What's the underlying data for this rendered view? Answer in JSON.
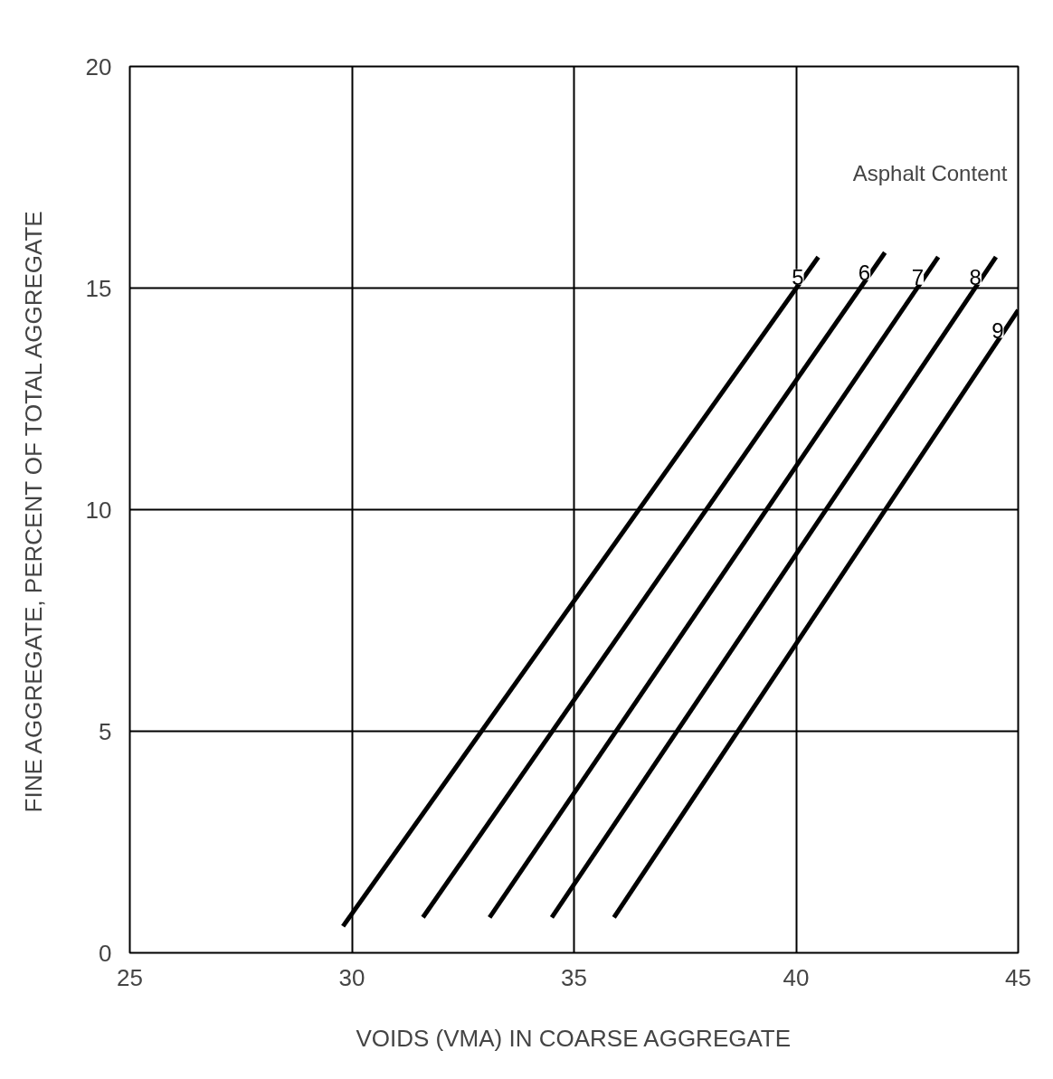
{
  "chart_data": {
    "type": "line",
    "xlabel": "VOIDS (VMA) IN COARSE AGGREGATE",
    "ylabel": "FINE AGGREGATE, PERCENT OF TOTAL AGGREGATE",
    "legend_title": "Asphalt Content",
    "xlim": [
      25,
      45
    ],
    "ylim": [
      0,
      20
    ],
    "xticks": [
      25,
      30,
      35,
      40,
      45
    ],
    "yticks": [
      0,
      5,
      10,
      15,
      20
    ],
    "grid": true,
    "marker": "none",
    "line_style": "solid",
    "series": [
      {
        "name": "5",
        "color": "#000000",
        "x": [
          29.8,
          40.5
        ],
        "values": [
          0.6,
          15.7
        ]
      },
      {
        "name": "6",
        "color": "#000000",
        "x": [
          31.6,
          42.0
        ],
        "values": [
          0.8,
          15.8
        ]
      },
      {
        "name": "7",
        "color": "#000000",
        "x": [
          33.1,
          43.2
        ],
        "values": [
          0.8,
          15.7
        ]
      },
      {
        "name": "8",
        "color": "#000000",
        "x": [
          34.5,
          44.5
        ],
        "values": [
          0.8,
          15.7
        ]
      },
      {
        "name": "9",
        "color": "#000000",
        "x": [
          35.9,
          45.0
        ],
        "values": [
          0.8,
          14.5
        ]
      }
    ]
  }
}
